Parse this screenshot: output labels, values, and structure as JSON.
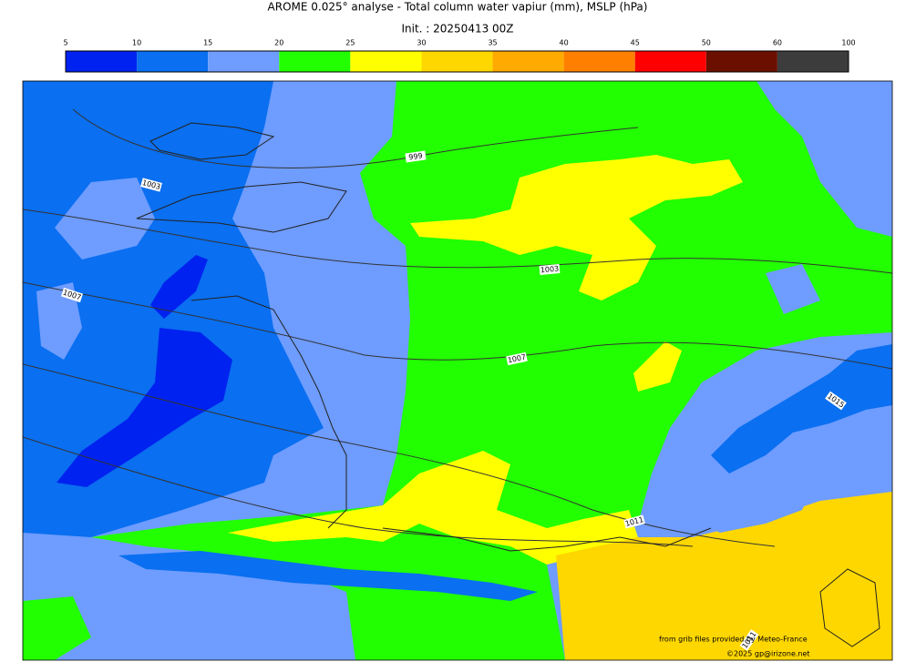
{
  "header": {
    "title": "AROME 0.025° analyse - Total column water vapiur (mm), MSLP (hPa)",
    "init": "Init. : 20250413 00Z"
  },
  "colorbar": {
    "bounds": [
      5,
      10,
      15,
      20,
      25,
      30,
      35,
      40,
      45,
      50,
      60,
      100
    ],
    "colors": [
      "#0022f0",
      "#0a6ff0",
      "#6e9cff",
      "#22ff00",
      "#ffff00",
      "#ffd700",
      "#ffaa00",
      "#ff8000",
      "#ff0000",
      "#6b0f00",
      "#3c3c3c"
    ]
  },
  "isobar_labels": [
    "999",
    "1003",
    "1007",
    "1003",
    "1007",
    "1011",
    "1015",
    "1011"
  ],
  "credits": {
    "source": "from grib files provided by Meteo-France",
    "copyright": "©2025 gp@irizone.net"
  }
}
